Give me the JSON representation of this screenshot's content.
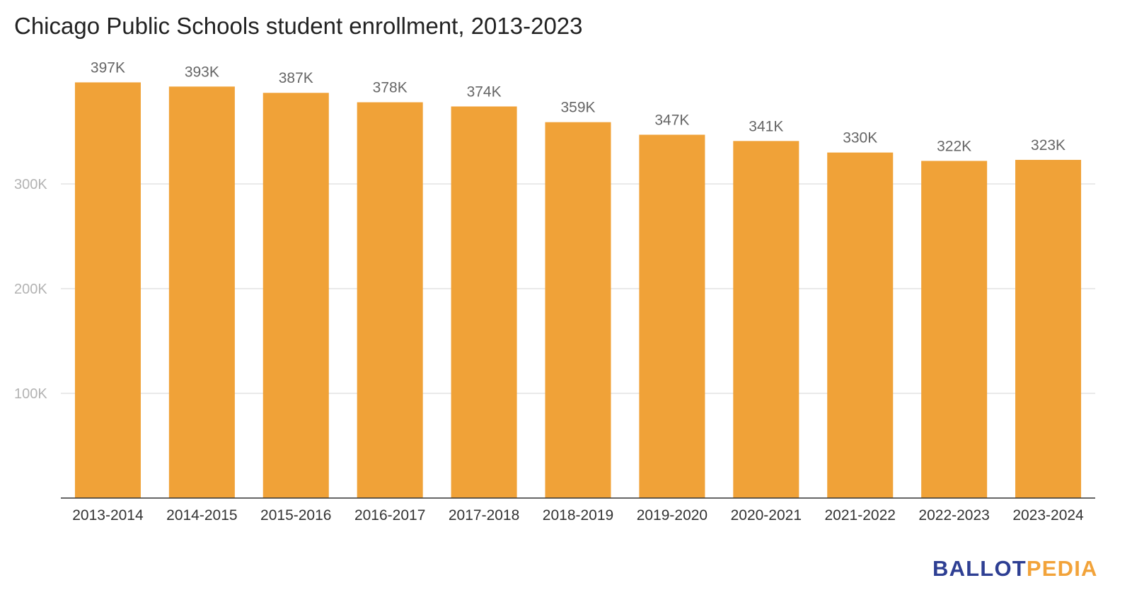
{
  "chart_data": {
    "type": "bar",
    "title": "Chicago Public Schools student enrollment, 2013-2023",
    "categories": [
      "2013-2014",
      "2014-2015",
      "2015-2016",
      "2016-2017",
      "2017-2018",
      "2018-2019",
      "2019-2020",
      "2020-2021",
      "2021-2022",
      "2022-2023",
      "2023-2024"
    ],
    "values": [
      397000,
      393000,
      387000,
      378000,
      374000,
      359000,
      347000,
      341000,
      330000,
      322000,
      323000
    ],
    "data_labels": [
      "397K",
      "393K",
      "387K",
      "378K",
      "374K",
      "359K",
      "347K",
      "341K",
      "330K",
      "322K",
      "323K"
    ],
    "yticks": [
      100000,
      200000,
      300000
    ],
    "ytick_labels": [
      "100K",
      "200K",
      "300K"
    ],
    "ylim": [
      0,
      400000
    ],
    "xlabel": "",
    "ylabel": "",
    "grid": true,
    "legend": "none",
    "bar_color": "#f0a238"
  },
  "brand": {
    "part1": "BALLOT",
    "part2": "PEDIA"
  }
}
